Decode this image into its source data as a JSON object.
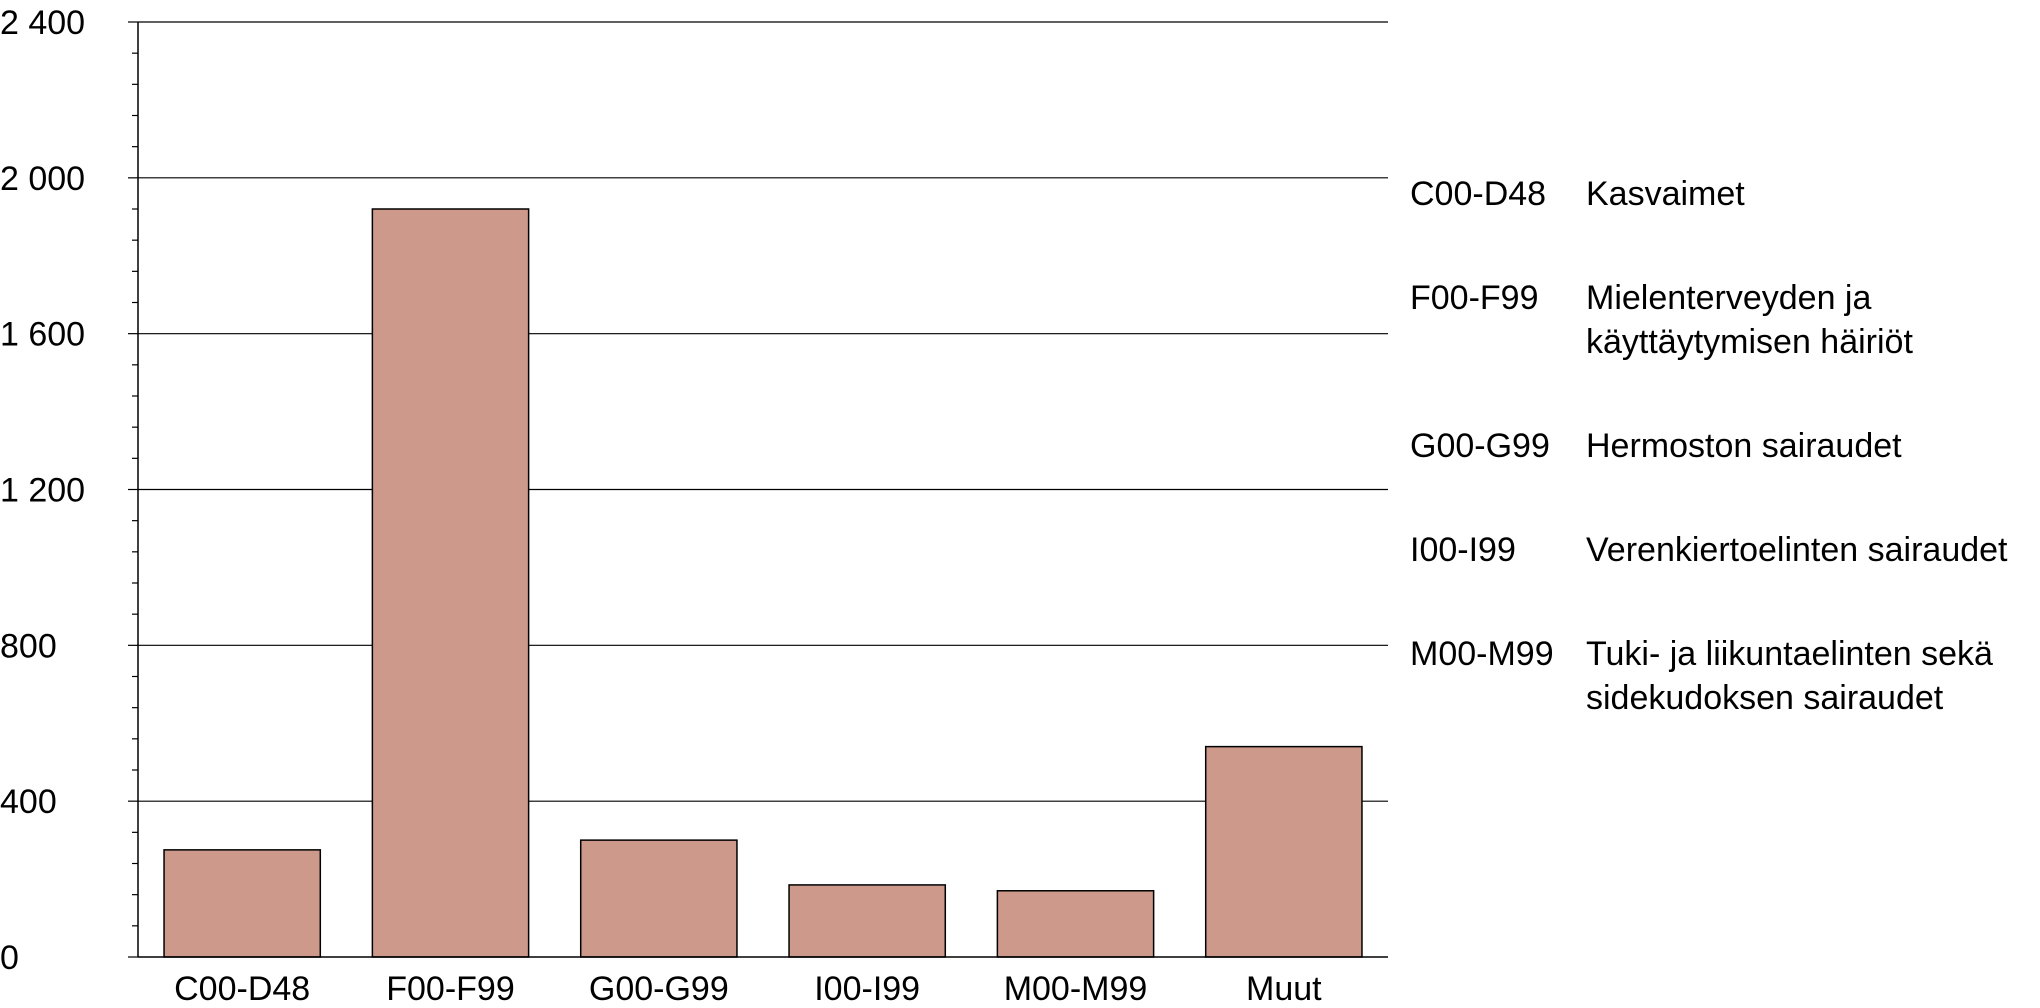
{
  "colors": {
    "bar": "#cc998b",
    "bar_stroke": "#000000",
    "grid": "#000000",
    "text": "#000000"
  },
  "chart_data": {
    "type": "bar",
    "categories": [
      "C00-D48",
      "F00-F99",
      "G00-G99",
      "I00-I99",
      "M00-M99",
      "Muut"
    ],
    "values": [
      275,
      1920,
      300,
      185,
      170,
      540
    ],
    "ylim": [
      0,
      2400
    ],
    "yticks": [
      0,
      400,
      800,
      1200,
      1600,
      2000,
      2400
    ],
    "ytick_labels": [
      "0",
      "400",
      "800",
      "1 200",
      "1 600",
      "2 000",
      "2 400"
    ],
    "minor_tick_step": 80,
    "grid": true,
    "title": "",
    "xlabel": "",
    "ylabel": ""
  },
  "legend": {
    "items": [
      {
        "code": "C00-D48",
        "description": "Kasvaimet"
      },
      {
        "code": "F00-F99",
        "description": "Mielenterveyden ja käyttäytymisen häiriöt"
      },
      {
        "code": "G00-G99",
        "description": "Hermoston sairaudet"
      },
      {
        "code": "I00-I99",
        "description": "Verenkiertoelinten sairaudet"
      },
      {
        "code": "M00-M99",
        "description": "Tuki- ja liikuntaelinten sekä sidekudoksen sairaudet"
      }
    ]
  }
}
